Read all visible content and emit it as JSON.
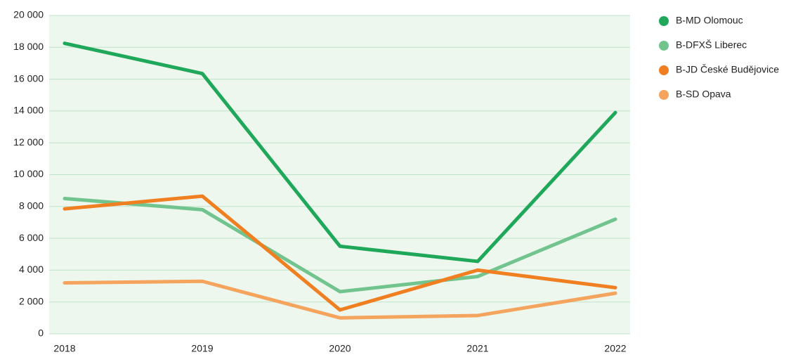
{
  "chart_data": {
    "type": "line",
    "categories": [
      "2018",
      "2019",
      "2020",
      "2021",
      "2022"
    ],
    "series": [
      {
        "name": "B-MD Olomouc",
        "color": "#1fa85a",
        "values": [
          18250,
          16350,
          5500,
          4550,
          13900
        ]
      },
      {
        "name": "B-DFXŠ Liberec",
        "color": "#72c48f",
        "values": [
          8500,
          7800,
          2650,
          3600,
          7200
        ]
      },
      {
        "name": "B-JD České Budějovice",
        "color": "#f07f22",
        "values": [
          7850,
          8650,
          1500,
          4000,
          2900
        ]
      },
      {
        "name": "B-SD Opava",
        "color": "#f5a45e",
        "values": [
          3200,
          3300,
          1000,
          1150,
          2550
        ]
      }
    ],
    "ylim": [
      0,
      20000
    ],
    "yticks": [
      0,
      {
        "value": 2000,
        "label": "2 000"
      },
      {
        "value": 4000,
        "label": "4 000"
      },
      {
        "value": 6000,
        "label": "6 000"
      },
      {
        "value": 8000,
        "label": "8 000"
      },
      {
        "value": 10000,
        "label": "10 000"
      },
      {
        "value": 12000,
        "label": "12 000"
      },
      {
        "value": 14000,
        "label": "14 000"
      },
      {
        "value": 16000,
        "label": "16 000"
      },
      {
        "value": 18000,
        "label": "18 000"
      },
      {
        "value": 20000,
        "label": "20 000"
      }
    ],
    "grid": true,
    "legend": "right"
  }
}
